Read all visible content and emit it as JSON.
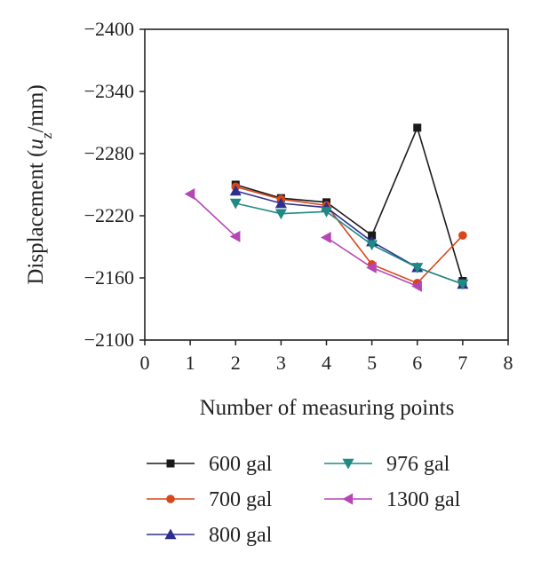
{
  "chart_data": {
    "type": "line",
    "title": "",
    "xlabel": "Number of measuring points",
    "ylabel": "Displacement (u_z/mm)",
    "ylabel_parts": [
      "Displacement (",
      "u",
      "z",
      "/mm)"
    ],
    "xlim": [
      0,
      8
    ],
    "ylim": [
      -2100,
      -2400
    ],
    "y_axis_inverted": true,
    "xticks": [
      0,
      1,
      2,
      3,
      4,
      5,
      6,
      7,
      8
    ],
    "yticks": [
      -2100,
      -2160,
      -2220,
      -2280,
      -2340,
      -2400
    ],
    "ytick_labels": [
      "−2100",
      "−2160",
      "−2220",
      "−2280",
      "−2340",
      "−2400"
    ],
    "grid": false,
    "legend_position": "bottom",
    "series": [
      {
        "name": "600 gal",
        "color": "#1a1a1a",
        "marker": "square",
        "points": [
          [
            2,
            -2250
          ],
          [
            3,
            -2237
          ],
          [
            4,
            -2233
          ],
          [
            5,
            -2201
          ],
          [
            6,
            -2305
          ],
          [
            7,
            -2157
          ]
        ]
      },
      {
        "name": "700 gal",
        "color": "#d9461a",
        "marker": "circle",
        "points": [
          [
            2,
            -2248
          ],
          [
            3,
            -2236
          ],
          [
            4,
            -2230
          ],
          [
            5,
            -2173
          ],
          [
            6,
            -2155
          ],
          [
            7,
            -2201
          ]
        ]
      },
      {
        "name": "800 gal",
        "color": "#2e2f8c",
        "marker": "triangle-up",
        "points": [
          [
            2,
            -2244
          ],
          [
            3,
            -2232
          ],
          [
            4,
            -2228
          ],
          [
            5,
            -2195
          ],
          [
            6,
            -2170
          ],
          [
            7,
            -2154
          ]
        ]
      },
      {
        "name": "976 gal",
        "color": "#1f8a84",
        "marker": "triangle-down",
        "points": [
          [
            2,
            -2232
          ],
          [
            3,
            -2222
          ],
          [
            4,
            -2224
          ],
          [
            5,
            -2192
          ],
          [
            6,
            -2170
          ],
          [
            7,
            -2154
          ]
        ]
      },
      {
        "name": "1300 gal",
        "color": "#b547b5",
        "marker": "triangle-left",
        "segments": [
          [
            [
              1,
              -2241
            ],
            [
              2,
              -2200
            ]
          ],
          [
            [
              4,
              -2199
            ],
            [
              5,
              -2170
            ],
            [
              6,
              -2152
            ]
          ]
        ]
      }
    ]
  }
}
